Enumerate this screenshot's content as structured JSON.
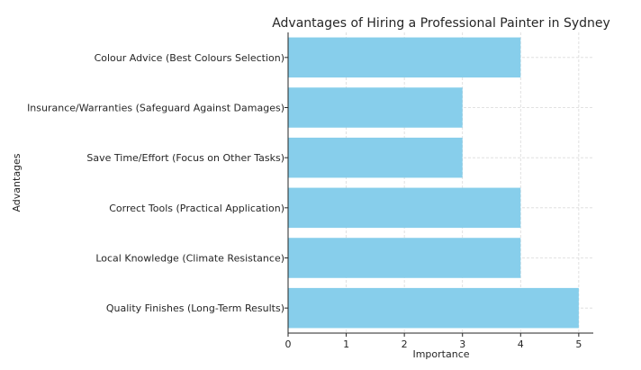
{
  "chart_data": {
    "type": "bar",
    "orientation": "horizontal",
    "title": "Advantages of Hiring a Professional Painter in Sydney",
    "xlabel": "Importance",
    "ylabel": "Advantages",
    "categories": [
      "Quality Finishes (Long-Term Results)",
      "Local Knowledge (Climate Resistance)",
      "Correct Tools (Practical Application)",
      "Save Time/Effort (Focus on Other Tasks)",
      "Insurance/Warranties (Safeguard Against Damages)",
      "Colour Advice (Best Colours Selection)"
    ],
    "values": [
      5,
      4,
      4,
      3,
      3,
      4
    ],
    "xlim": [
      0,
      5.25
    ],
    "xticks": [
      "0",
      "1",
      "2",
      "3",
      "4",
      "5"
    ],
    "grid": true,
    "bar_color": "#87ceeb",
    "legend": "none"
  }
}
